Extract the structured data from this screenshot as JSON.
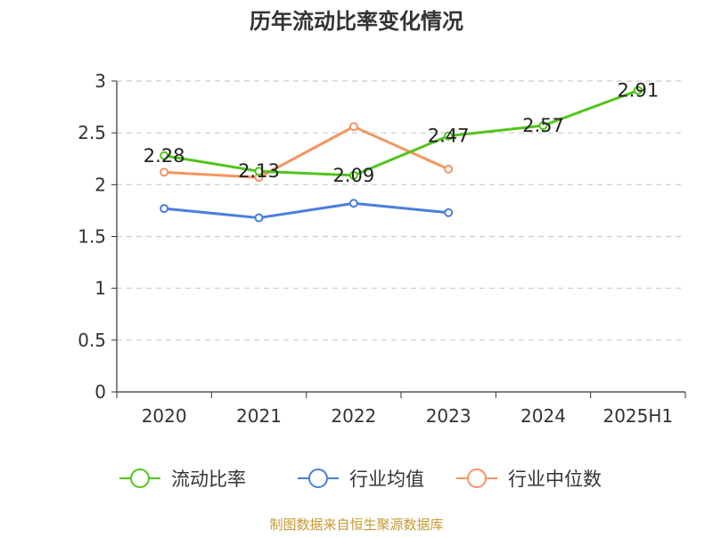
{
  "chart_data": {
    "type": "line",
    "title": "历年流动比率变化情况",
    "categories": [
      "2020",
      "2021",
      "2022",
      "2023",
      "2024",
      "2025H1"
    ],
    "y_ticks": [
      "0",
      "0.5",
      "1",
      "1.5",
      "2",
      "2.5",
      "3"
    ],
    "ylim": [
      0,
      3
    ],
    "grid": true,
    "legend_position": "bottom",
    "series": [
      {
        "name": "流动比率",
        "color": "#52c41a",
        "values": [
          2.28,
          2.13,
          2.09,
          2.47,
          2.57,
          2.91
        ],
        "data_labels": [
          "2.28",
          "2.13",
          "2.09",
          "2.47",
          "2.57",
          "2.91"
        ]
      },
      {
        "name": "行业均值",
        "color": "#4a7fdc",
        "values": [
          1.77,
          1.68,
          1.82,
          1.73,
          null,
          null
        ]
      },
      {
        "name": "行业中位数",
        "color": "#f59461",
        "values": [
          2.12,
          2.07,
          2.56,
          2.15,
          null,
          null
        ]
      }
    ],
    "source": "制图数据来自恒生聚源数据库"
  },
  "colors": {
    "axis": "#333333",
    "grid": "#cccccc",
    "source_text": "#c69a33"
  }
}
